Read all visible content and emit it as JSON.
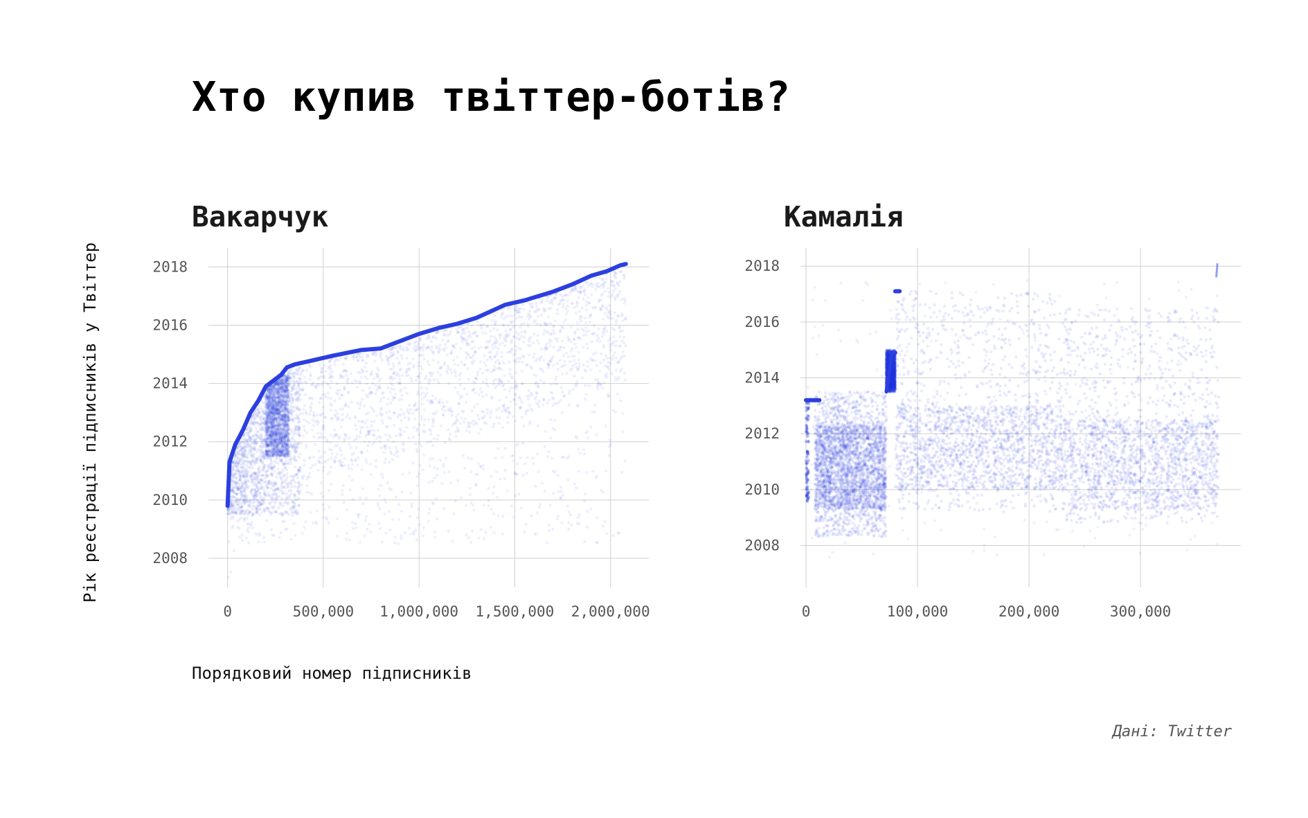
{
  "title": "Хто купив твіттер-ботів?",
  "y_axis_title": "Рік реєстрації підписників у Твіттер",
  "x_axis_title": "Порядковий номер підписників",
  "source": "Дані: Twitter",
  "colors": {
    "accent": "#2b3fe0",
    "grid": "#cfcfcf",
    "tick_text": "#555555",
    "background": "#ffffff"
  },
  "chart_data": [
    {
      "type": "scatter",
      "title": "Вакарчук",
      "xlabel": "Порядковий номер підписників",
      "ylabel": "Рік реєстрації підписників у Твіттер",
      "xlim": [
        -100000,
        2200000
      ],
      "ylim": [
        2007,
        2018.65
      ],
      "x_ticks": [
        0,
        500000,
        1000000,
        1500000,
        2000000
      ],
      "x_tick_labels": [
        "0",
        "500,000",
        "1,000,000",
        "1,500,000",
        "2,000,000"
      ],
      "y_ticks": [
        2008,
        2010,
        2012,
        2014,
        2016,
        2018
      ],
      "y_tick_labels": [
        "2008",
        "2010",
        "2012",
        "2014",
        "2016",
        "2018"
      ],
      "grid": true,
      "x_max": 2080000,
      "upper_envelope": [
        [
          0,
          2009.8
        ],
        [
          10000,
          2011.3
        ],
        [
          40000,
          2011.9
        ],
        [
          80000,
          2012.4
        ],
        [
          120000,
          2013.0
        ],
        [
          160000,
          2013.4
        ],
        [
          200000,
          2013.9
        ],
        [
          250000,
          2014.15
        ],
        [
          280000,
          2014.3
        ],
        [
          310000,
          2014.55
        ],
        [
          350000,
          2014.65
        ],
        [
          450000,
          2014.8
        ],
        [
          550000,
          2014.95
        ],
        [
          700000,
          2015.15
        ],
        [
          800000,
          2015.2
        ],
        [
          900000,
          2015.45
        ],
        [
          1000000,
          2015.7
        ],
        [
          1100000,
          2015.9
        ],
        [
          1200000,
          2016.05
        ],
        [
          1300000,
          2016.25
        ],
        [
          1400000,
          2016.55
        ],
        [
          1450000,
          2016.7
        ],
        [
          1550000,
          2016.85
        ],
        [
          1700000,
          2017.15
        ],
        [
          1800000,
          2017.4
        ],
        [
          1900000,
          2017.7
        ],
        [
          1980000,
          2017.85
        ],
        [
          2050000,
          2018.05
        ],
        [
          2080000,
          2018.1
        ]
      ],
      "dense_bands": [
        {
          "x": [
            0,
            380000
          ],
          "y": [
            2009.5,
            2014.5
          ],
          "density": 3.0
        },
        {
          "x": [
            200000,
            320000
          ],
          "y": [
            2011.5,
            2014.3
          ],
          "density": 4.0
        }
      ]
    },
    {
      "type": "scatter",
      "title": "Камалія",
      "xlabel": "Порядковий номер підписників",
      "ylabel": "Рік реєстрації підписників у Твіттер",
      "xlim": [
        -5000,
        390000
      ],
      "ylim": [
        2006.5,
        2018.65
      ],
      "x_ticks": [
        0,
        100000,
        200000,
        300000
      ],
      "x_tick_labels": [
        "0",
        "100,000",
        "200,000",
        "300,000"
      ],
      "y_ticks": [
        2008,
        2010,
        2012,
        2014,
        2016,
        2018
      ],
      "y_tick_labels": [
        "2008",
        "2010",
        "2012",
        "2014",
        "2016",
        "2018"
      ],
      "grid": true,
      "x_max": 370000,
      "blocks": [
        {
          "x": [
            8000,
            72000
          ],
          "y": [
            2008.3,
            2013.5
          ],
          "density": 6,
          "core": [
            2009.3,
            2012.3
          ]
        },
        {
          "x": [
            72000,
            80000
          ],
          "y": [
            2013.5,
            2015.0
          ],
          "density": 6,
          "core": [
            2013.6,
            2014.9
          ]
        },
        {
          "x": [
            80000,
            230000
          ],
          "y": [
            2009.2,
            2017.1
          ],
          "density": 4,
          "core": [
            2010.0,
            2013.0
          ]
        },
        {
          "x": [
            230000,
            370000
          ],
          "y": [
            2008.8,
            2016.5
          ],
          "density": 4,
          "core": [
            2009.3,
            2012.5
          ]
        }
      ],
      "solid_runs": [
        {
          "x": [
            0,
            12000
          ],
          "y": 2013.2
        },
        {
          "x": [
            76000,
            80000
          ],
          "y": 2014.9
        },
        {
          "x": [
            80000,
            84000
          ],
          "y": 2017.1
        }
      ]
    }
  ]
}
